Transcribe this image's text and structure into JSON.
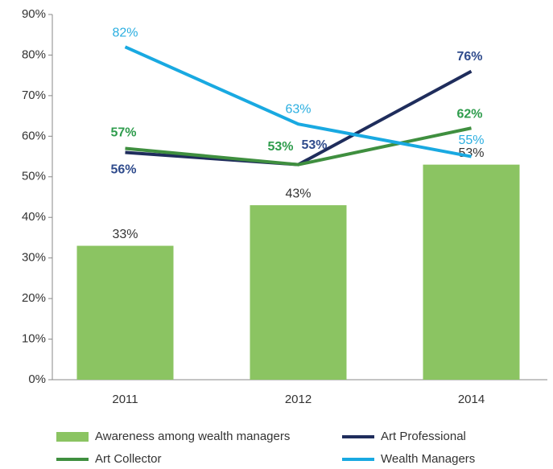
{
  "chart_data": {
    "type": "combo",
    "categories": [
      "2011",
      "2012",
      "2014"
    ],
    "ylim": [
      0,
      90
    ],
    "yticks": [
      {
        "value": 0,
        "label": "0%"
      },
      {
        "value": 10,
        "label": "10%"
      },
      {
        "value": 20,
        "label": "20%"
      },
      {
        "value": 30,
        "label": "30%"
      },
      {
        "value": 40,
        "label": "40%"
      },
      {
        "value": 50,
        "label": "50%"
      },
      {
        "value": 60,
        "label": "60%"
      },
      {
        "value": 70,
        "label": "70%"
      },
      {
        "value": 80,
        "label": "80%"
      },
      {
        "value": 90,
        "label": "90%"
      }
    ],
    "series": [
      {
        "name": "Awareness among wealth managers",
        "type": "bar",
        "color": "#8bc462",
        "label_color": "#333333",
        "values": [
          33,
          43,
          53
        ],
        "value_labels": [
          "33%",
          "43%",
          "53%"
        ]
      },
      {
        "name": "Art Professional",
        "type": "line",
        "color": "#1f2d5c",
        "label_color": "#2f4b8c",
        "values": [
          56,
          53,
          76
        ],
        "value_labels": [
          "56%",
          "53%",
          "76%"
        ]
      },
      {
        "name": "Art Collector",
        "type": "line",
        "color": "#3f8f3f",
        "label_color": "#2e9c4c",
        "values": [
          57,
          53,
          62
        ],
        "value_labels": [
          "57%",
          "53%",
          "62%"
        ]
      },
      {
        "name": "Wealth Managers",
        "type": "line",
        "color": "#19a9e1",
        "label_color": "#2aaee0",
        "values": [
          82,
          63,
          55
        ],
        "value_labels": [
          "82%",
          "63%",
          "55%"
        ]
      }
    ]
  }
}
